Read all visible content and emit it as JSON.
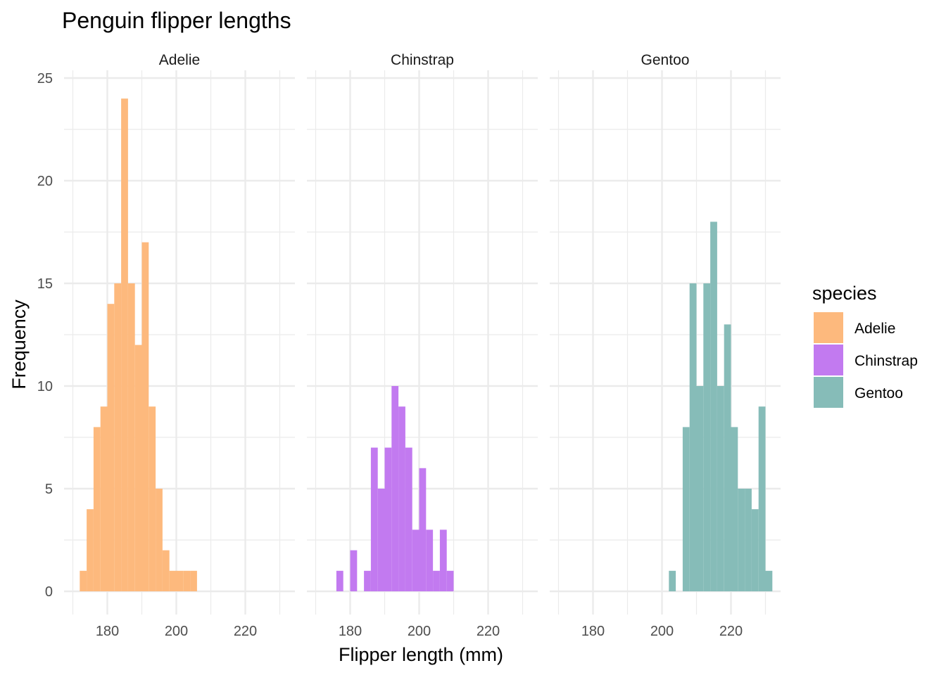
{
  "chart_data": {
    "type": "bar",
    "title": "Penguin flipper lengths",
    "xlabel": "Flipper length (mm)",
    "ylabel": "Frequency",
    "xlim": [
      170,
      233
    ],
    "ylim": [
      0,
      25
    ],
    "x_ticks": [
      180,
      200,
      220
    ],
    "x_tick_labels": [
      "180",
      "200",
      "220"
    ],
    "y_ticks": [
      0,
      5,
      10,
      15,
      20,
      25
    ],
    "y_tick_labels": [
      "0",
      "5",
      "10",
      "15",
      "20",
      "25"
    ],
    "grid": true,
    "legend": {
      "title": "species",
      "position": "right"
    },
    "bin_width": 2,
    "bin_start": 172,
    "bin_end": 233,
    "series": [
      {
        "name": "Adelie",
        "color": "#FDB97D",
        "values": [
          1,
          4,
          8,
          9,
          14,
          15,
          24,
          15,
          12,
          17,
          9,
          5,
          2,
          1,
          1,
          1,
          1,
          0,
          0,
          0,
          0,
          0,
          0,
          0,
          0,
          0,
          0,
          0,
          0,
          0,
          0
        ]
      },
      {
        "name": "Chinstrap",
        "color": "#C27AF0",
        "values": [
          0,
          0,
          1,
          0,
          2,
          0,
          1,
          7,
          5,
          7,
          10,
          9,
          7,
          3,
          6,
          3,
          1,
          3,
          1,
          0,
          0,
          0,
          0,
          0,
          0,
          0,
          0,
          0,
          0,
          0,
          0
        ]
      },
      {
        "name": "Gentoo",
        "color": "#86BCB8",
        "values": [
          0,
          0,
          0,
          0,
          0,
          0,
          0,
          0,
          0,
          0,
          0,
          0,
          0,
          0,
          0,
          1,
          0,
          8,
          15,
          10,
          15,
          18,
          10,
          13,
          8,
          5,
          5,
          4,
          9,
          1,
          0
        ]
      }
    ]
  }
}
